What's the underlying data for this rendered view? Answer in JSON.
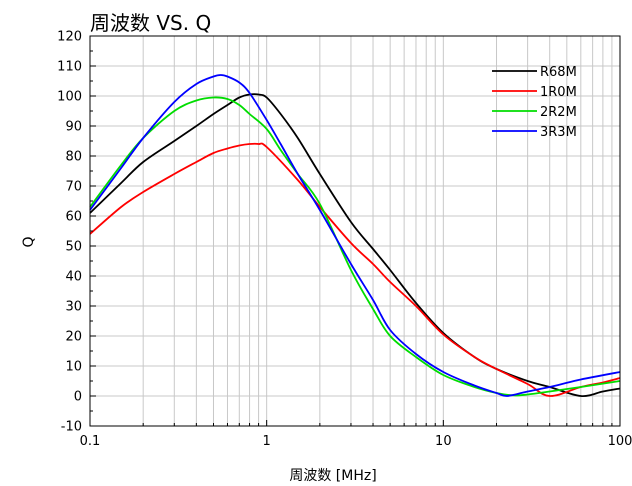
{
  "chart_data": {
    "type": "line",
    "title": "周波数 VS. Q",
    "xlabel": "周波数 [MHz]",
    "ylabel": "Q",
    "x_scale": "log",
    "xlim": [
      0.1,
      100
    ],
    "ylim": [
      -10,
      120
    ],
    "x_ticks": [
      0.1,
      1,
      10,
      100
    ],
    "x_tick_labels": [
      "0.1",
      "1",
      "10",
      "100"
    ],
    "y_ticks": [
      -10,
      0,
      10,
      20,
      30,
      40,
      50,
      60,
      70,
      80,
      90,
      100,
      110,
      120
    ],
    "y_tick_labels": [
      "-10",
      "0",
      "10",
      "20",
      "30",
      "40",
      "50",
      "60",
      "70",
      "80",
      "90",
      "100",
      "110",
      "120"
    ],
    "grid": true,
    "legend_position": "top-right",
    "series": [
      {
        "name": "R68M",
        "color": "#000000",
        "x": [
          0.1,
          0.15,
          0.2,
          0.3,
          0.4,
          0.5,
          0.6,
          0.7,
          0.8,
          0.9,
          1.0,
          1.2,
          1.5,
          2,
          3,
          4,
          5,
          7,
          10,
          15,
          20,
          30,
          40,
          60,
          80,
          100
        ],
        "y": [
          61,
          71,
          78,
          85,
          90,
          94,
          97,
          99.5,
          100.5,
          100.5,
          99.5,
          94,
          86,
          74,
          58,
          49,
          42,
          31,
          21,
          13,
          9,
          5,
          3,
          0,
          1.5,
          2.5
        ]
      },
      {
        "name": "1R0M",
        "color": "#ff0000",
        "x": [
          0.1,
          0.15,
          0.2,
          0.3,
          0.4,
          0.5,
          0.6,
          0.7,
          0.8,
          0.9,
          1.0,
          1.5,
          2,
          3,
          4,
          5,
          7,
          10,
          15,
          20,
          30,
          40,
          60,
          80,
          100
        ],
        "y": [
          54,
          63,
          68,
          74,
          78,
          81,
          82.5,
          83.5,
          84,
          84,
          83,
          72,
          63,
          51,
          44,
          38,
          30,
          20.5,
          13,
          9,
          4,
          0,
          3,
          4.5,
          6
        ]
      },
      {
        "name": "2R2M",
        "color": "#00dd00",
        "x": [
          0.1,
          0.15,
          0.2,
          0.3,
          0.4,
          0.5,
          0.6,
          0.7,
          0.8,
          1.0,
          1.2,
          1.5,
          2,
          3,
          4,
          5,
          7,
          10,
          15,
          20,
          25,
          30,
          40,
          60,
          100
        ],
        "y": [
          63,
          77,
          86,
          95,
          98.5,
          99.5,
          99,
          97,
          94,
          89,
          82,
          74,
          64,
          42,
          29,
          20,
          13,
          7,
          3,
          1,
          0.2,
          0.5,
          1.5,
          3,
          5
        ]
      },
      {
        "name": "3R3M",
        "color": "#0000ff",
        "x": [
          0.1,
          0.15,
          0.2,
          0.3,
          0.4,
          0.5,
          0.55,
          0.6,
          0.7,
          0.8,
          1.0,
          1.2,
          1.5,
          2,
          3,
          4,
          5,
          7,
          10,
          15,
          20,
          23,
          30,
          40,
          60,
          100
        ],
        "y": [
          62,
          76,
          86,
          98,
          104,
          106.5,
          107,
          106.5,
          104.5,
          101,
          92,
          84,
          74,
          62,
          44,
          32,
          22,
          14,
          8,
          3.5,
          1,
          0,
          1.5,
          3,
          5.5,
          8
        ]
      }
    ]
  }
}
